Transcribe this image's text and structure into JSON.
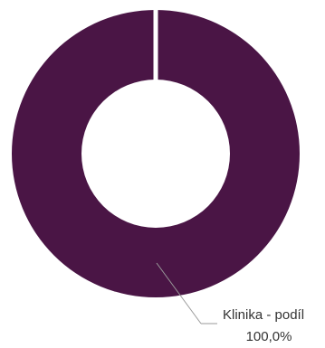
{
  "chart_data": {
    "type": "pie",
    "donut": true,
    "title": "",
    "categories": [
      "Klinika - podíl"
    ],
    "values": [
      100.0
    ],
    "value_labels": [
      "100,0%"
    ],
    "colors": [
      "#4a1545"
    ],
    "background_color": "#ffffff",
    "leader_line_color": "#9a9a9a",
    "label_color": "#333333",
    "legend": "none"
  }
}
